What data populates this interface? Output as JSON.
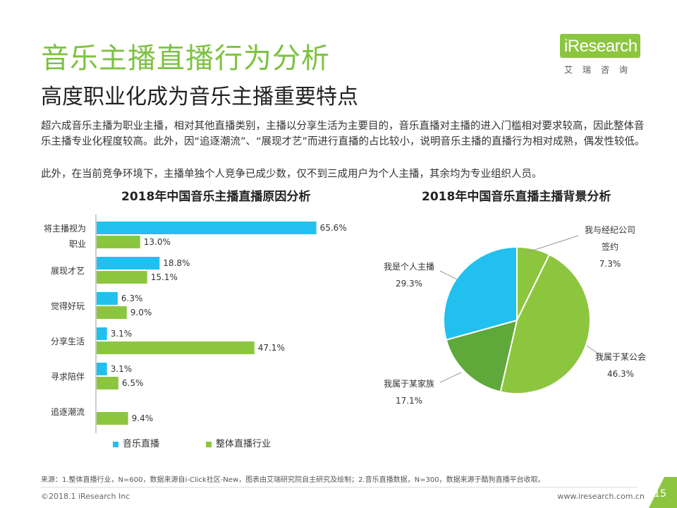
{
  "header": {
    "title": "音乐主播直播行为分析",
    "subtitle": "高度职业化成为音乐主播重要特点"
  },
  "logo": {
    "name": "iResearch",
    "sub": "艾瑞咨询"
  },
  "body_text": {
    "para1": "超六成音乐主播为职业主播，相对其他直播类别，主播以分享生活为主要目的，音乐直播对主播的进入门槛相对要求较高，因此整体音乐主播专业化程度较高。此外，因“追逐潮流”、“展现才艺”而进行直播的占比较小，说明音乐主播的直播行为相对成熟，偶发性较低。",
    "para2": "此外，在当前竞争环境下，主播单独个人竞争已成少数，仅不到三成用户为个人主播，其余均为专业组织人员。"
  },
  "colors": {
    "accent": "#7dc242",
    "blue": "#22c0ee",
    "green": "#8cc63f",
    "dark_green": "#5fa83a"
  },
  "chart_data": [
    {
      "type": "bar",
      "orientation": "horizontal",
      "title": "2018年中国音乐主播直播原因分析",
      "categories": [
        "将主播视为职业",
        "展现才艺",
        "觉得好玩",
        "分享生活",
        "寻求陪伴",
        "追逐潮流"
      ],
      "series": [
        {
          "name": "音乐直播",
          "values": [
            65.6,
            18.8,
            6.3,
            3.1,
            3.1,
            null
          ],
          "labels": [
            "65.6%",
            "18.8%",
            "6.3%",
            "3.1%",
            "3.1%",
            ""
          ]
        },
        {
          "name": "整体直播行业",
          "values": [
            13.0,
            15.1,
            9.0,
            47.1,
            6.5,
            9.4
          ],
          "labels": [
            "13.0%",
            "15.1%",
            "9.0%",
            "47.1%",
            "6.5%",
            "9.4%"
          ]
        }
      ],
      "xlim": [
        0,
        70
      ]
    },
    {
      "type": "pie",
      "title": "2018年中国音乐直播主播背景分析",
      "slices": [
        {
          "label": "我与经纪公司签约",
          "value": 7.3,
          "pct": "7.3%",
          "color": "#8cc63f"
        },
        {
          "label": "我属于某公会",
          "value": 46.3,
          "pct": "46.3%",
          "color": "#8cc63f"
        },
        {
          "label": "我属于某家族",
          "value": 17.1,
          "pct": "17.1%",
          "color": "#5fa83a"
        },
        {
          "label": "我是个人主播",
          "value": 29.3,
          "pct": "29.3%",
          "color": "#22c0ee"
        }
      ]
    }
  ],
  "footer": {
    "source": "来源：1.整体直播行业，N=600，数据来源自i-Click社区-New，图表由艾瑞研究院自主研究及绘制；2.音乐直播数据，N=300，数据来源于酷狗直播平台收取。",
    "copyright": "©2018.1 iResearch Inc",
    "website": "www.iresearch.com.cn",
    "page": "15"
  }
}
